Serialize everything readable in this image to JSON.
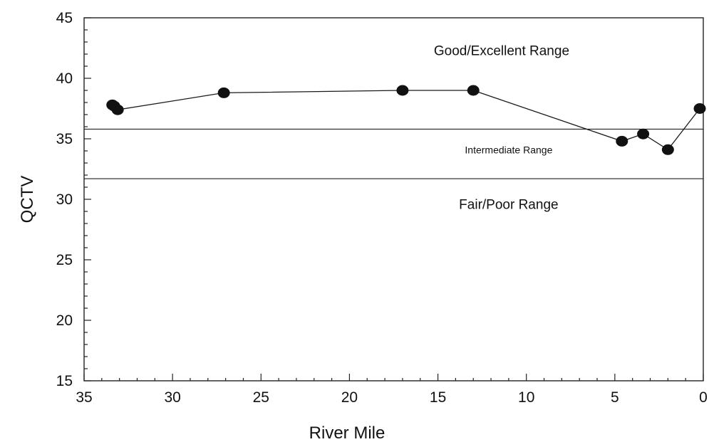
{
  "chart_data": {
    "type": "line",
    "title": "",
    "xlabel": "River Mile",
    "ylabel": "QCTV",
    "xlim": [
      35,
      0
    ],
    "ylim": [
      15,
      45
    ],
    "x_reversed": true,
    "x_major_ticks": [
      35,
      30,
      25,
      20,
      15,
      10,
      5,
      0
    ],
    "x_tick_labels": [
      "35",
      "30",
      "25",
      "20",
      "15",
      "10",
      "5",
      "0"
    ],
    "y_major_ticks": [
      15,
      20,
      25,
      30,
      35,
      40,
      45
    ],
    "y_tick_labels": [
      "15",
      "20",
      "25",
      "30",
      "35",
      "40",
      "45"
    ],
    "x_minor_step": 1,
    "y_minor_step": 1,
    "grid": false,
    "legend": "none",
    "series": [
      {
        "x": [
          33.4,
          33.3,
          33.1,
          27.1,
          17.0,
          13.0,
          4.6,
          3.4,
          2.0,
          0.2
        ],
        "y": [
          37.8,
          37.7,
          37.4,
          38.8,
          39.0,
          39.0,
          34.8,
          35.4,
          34.1,
          37.5
        ],
        "marker": "filled-circle",
        "color": "#111111"
      }
    ],
    "reference_lines": [
      {
        "axis": "y",
        "value": 35.8
      },
      {
        "axis": "y",
        "value": 31.7
      }
    ],
    "annotations": [
      {
        "text": "Good/Excellent Range",
        "x": 11.4,
        "y": 41.9
      },
      {
        "text": "Intermediate Range",
        "x": 11.0,
        "y": 33.8
      },
      {
        "text": "Fair/Poor Range",
        "x": 11.0,
        "y": 29.2
      }
    ]
  }
}
